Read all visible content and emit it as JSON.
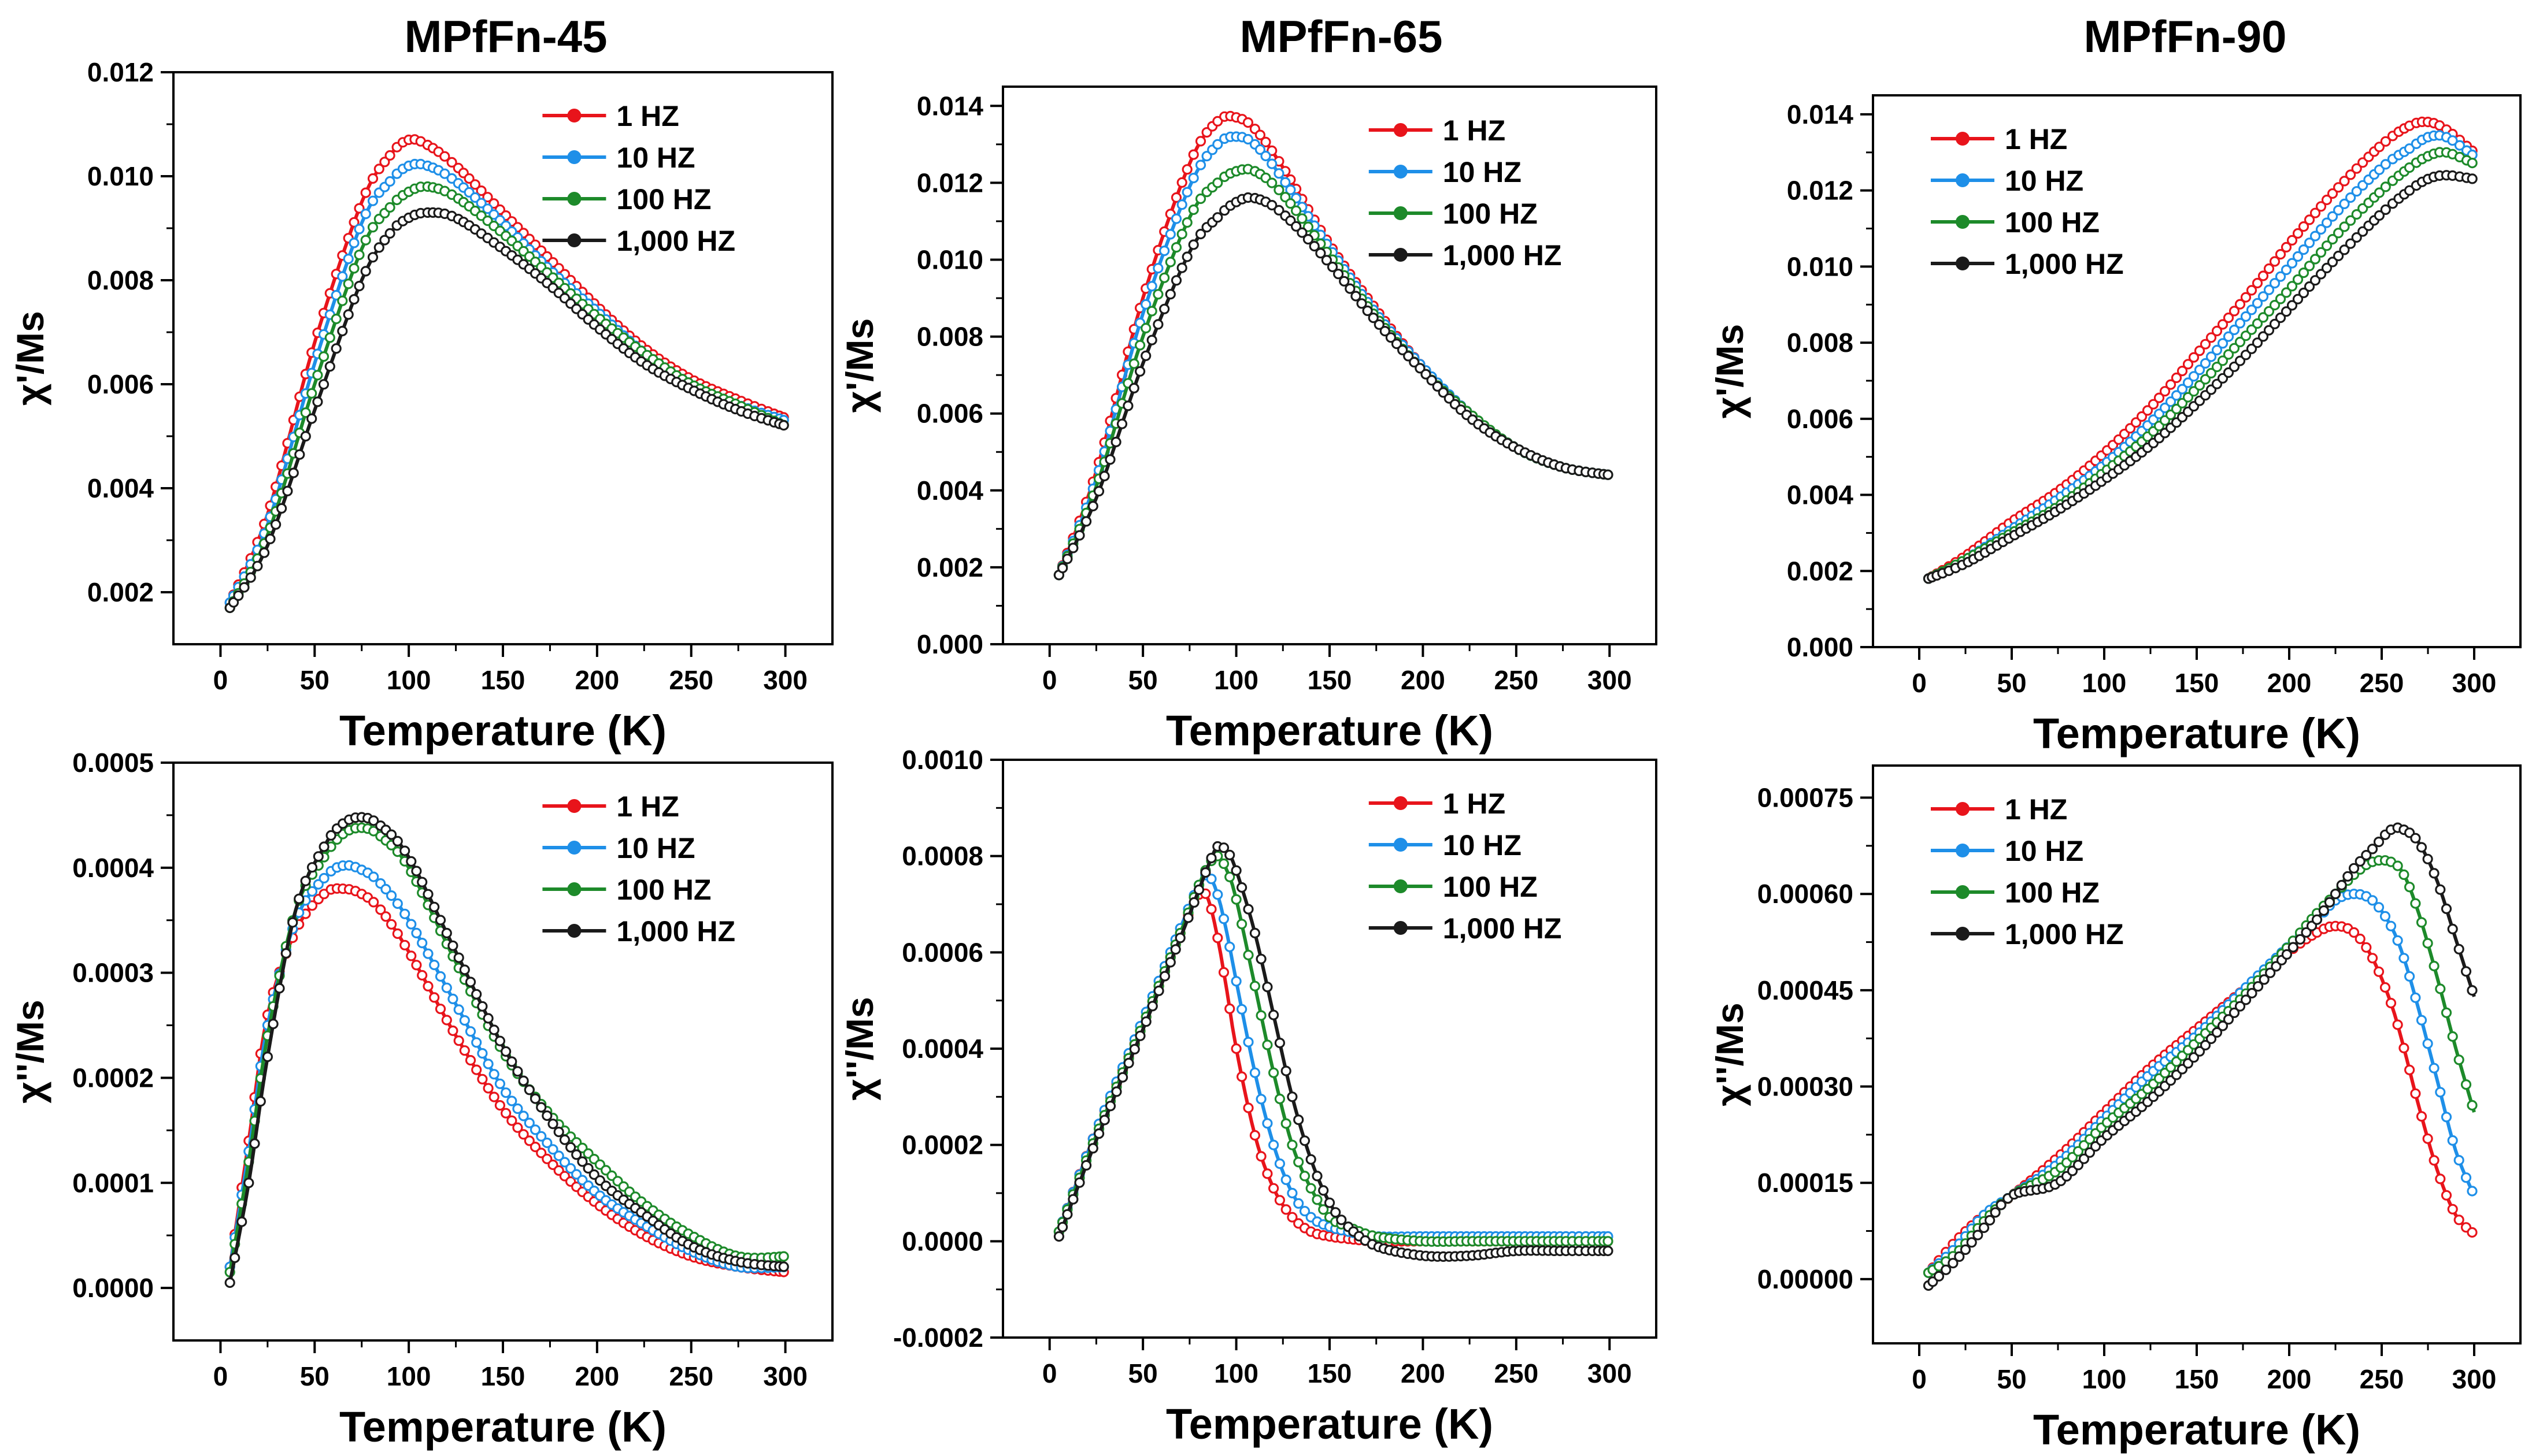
{
  "column_titles": [
    "MPfFn-45",
    "MPfFn-65",
    "MPfFn-90"
  ],
  "chart_data": [
    {
      "id": "p45_real",
      "type": "scatter",
      "title": "MPfFn-45",
      "xlabel": "Temperature (K)",
      "ylabel": "χ'/Ms",
      "xlim": [
        -25,
        325
      ],
      "ylim": [
        0.001,
        0.012
      ],
      "xticks": [
        0,
        50,
        100,
        150,
        200,
        250,
        300
      ],
      "xtick_labels": [
        "0",
        "50",
        "100",
        "150",
        "200",
        "250",
        "300"
      ],
      "yticks": [
        0.002,
        0.004,
        0.006,
        0.008,
        0.01,
        0.012
      ],
      "ytick_labels": [
        "0.002",
        "0.004",
        "0.006",
        "0.008",
        "0.010",
        "0.012"
      ],
      "legend_position": "top-right",
      "x": [
        5,
        25,
        50,
        75,
        90,
        100,
        110,
        125,
        150,
        175,
        200,
        225,
        250,
        275,
        300
      ],
      "series": [
        {
          "name": "1 HZ",
          "color": "#e8141b",
          "values": [
            0.0018,
            0.0035,
            0.0068,
            0.0095,
            0.0104,
            0.0107,
            0.0106,
            0.0102,
            0.0093,
            0.0084,
            0.0075,
            0.0067,
            0.0061,
            0.0057,
            0.00535
          ]
        },
        {
          "name": "10 HZ",
          "color": "#1e8fe8",
          "values": [
            0.0018,
            0.0033,
            0.0064,
            0.0091,
            0.0099,
            0.0102,
            0.0102,
            0.0099,
            0.0091,
            0.0082,
            0.0074,
            0.0066,
            0.006,
            0.0056,
            0.0053
          ]
        },
        {
          "name": "100 HZ",
          "color": "#1d8a2a",
          "values": [
            0.0017,
            0.0031,
            0.006,
            0.0086,
            0.0094,
            0.0097,
            0.0098,
            0.0096,
            0.0089,
            0.0081,
            0.0073,
            0.0066,
            0.006,
            0.0056,
            0.0052
          ]
        },
        {
          "name": "1,000 HZ",
          "color": "#1a1a1a",
          "values": [
            0.0017,
            0.0029,
            0.0055,
            0.008,
            0.0089,
            0.0092,
            0.0093,
            0.0092,
            0.0086,
            0.0079,
            0.0071,
            0.0064,
            0.0059,
            0.0055,
            0.0052
          ]
        }
      ]
    },
    {
      "id": "p65_real",
      "type": "scatter",
      "title": "MPfFn-65",
      "xlabel": "Temperature (K)",
      "ylabel": "χ'/Ms",
      "xlim": [
        -25,
        325
      ],
      "ylim": [
        0.0,
        0.0145
      ],
      "xticks": [
        0,
        50,
        100,
        150,
        200,
        250,
        300
      ],
      "xtick_labels": [
        "0",
        "50",
        "100",
        "150",
        "200",
        "250",
        "300"
      ],
      "yticks": [
        0.0,
        0.002,
        0.004,
        0.006,
        0.008,
        0.01,
        0.012,
        0.014
      ],
      "ytick_labels": [
        "0.000",
        "0.002",
        "0.004",
        "0.006",
        "0.008",
        "0.010",
        "0.012",
        "0.014"
      ],
      "legend_position": "top-right",
      "x": [
        5,
        25,
        50,
        75,
        90,
        100,
        110,
        125,
        150,
        175,
        200,
        225,
        250,
        275,
        300
      ],
      "series": [
        {
          "name": "1 HZ",
          "color": "#e8141b",
          "values": [
            0.0018,
            0.0045,
            0.009,
            0.0125,
            0.0136,
            0.0137,
            0.0134,
            0.0124,
            0.0104,
            0.0087,
            0.0072,
            0.006,
            0.0051,
            0.0046,
            0.0044
          ]
        },
        {
          "name": "10 HZ",
          "color": "#1e8fe8",
          "values": [
            0.0018,
            0.0043,
            0.0086,
            0.0119,
            0.013,
            0.0132,
            0.013,
            0.0121,
            0.0103,
            0.0086,
            0.0072,
            0.006,
            0.0051,
            0.0046,
            0.0044
          ]
        },
        {
          "name": "100 HZ",
          "color": "#1d8a2a",
          "values": [
            0.0018,
            0.0041,
            0.008,
            0.0111,
            0.012,
            0.0123,
            0.0123,
            0.0117,
            0.0101,
            0.0085,
            0.0071,
            0.006,
            0.0051,
            0.0046,
            0.0044
          ]
        },
        {
          "name": "1,000 HZ",
          "color": "#1a1a1a",
          "values": [
            0.0018,
            0.0038,
            0.0073,
            0.0102,
            0.0111,
            0.0115,
            0.0116,
            0.0112,
            0.0099,
            0.0084,
            0.0071,
            0.0059,
            0.0051,
            0.0046,
            0.0044
          ]
        }
      ]
    },
    {
      "id": "p90_real",
      "type": "scatter",
      "title": "MPfFn-90",
      "xlabel": "Temperature (K)",
      "ylabel": "χ'/Ms",
      "xlim": [
        -25,
        325
      ],
      "ylim": [
        0.0,
        0.0145
      ],
      "xticks": [
        0,
        50,
        100,
        150,
        200,
        250,
        300
      ],
      "xtick_labels": [
        "0",
        "50",
        "100",
        "150",
        "200",
        "250",
        "300"
      ],
      "yticks": [
        0.0,
        0.002,
        0.004,
        0.006,
        0.008,
        0.01,
        0.012,
        0.014
      ],
      "ytick_labels": [
        "0.000",
        "0.002",
        "0.004",
        "0.006",
        "0.008",
        "0.010",
        "0.012",
        "0.014"
      ],
      "legend_position": "top-left",
      "x": [
        5,
        25,
        50,
        75,
        100,
        125,
        150,
        175,
        200,
        225,
        250,
        265,
        275,
        285,
        300
      ],
      "series": [
        {
          "name": "1 HZ",
          "color": "#e8141b",
          "values": [
            0.0018,
            0.0024,
            0.0033,
            0.0041,
            0.0051,
            0.0063,
            0.0077,
            0.0091,
            0.0106,
            0.012,
            0.0132,
            0.0137,
            0.0138,
            0.0136,
            0.013
          ]
        },
        {
          "name": "10 HZ",
          "color": "#1e8fe8",
          "values": [
            0.0018,
            0.0023,
            0.0031,
            0.0039,
            0.0048,
            0.0059,
            0.0072,
            0.0086,
            0.01,
            0.0114,
            0.0126,
            0.0131,
            0.0134,
            0.0134,
            0.0129
          ]
        },
        {
          "name": "100 HZ",
          "color": "#1d8a2a",
          "values": [
            0.0018,
            0.0023,
            0.003,
            0.0037,
            0.0046,
            0.0056,
            0.0068,
            0.0081,
            0.0094,
            0.0108,
            0.012,
            0.0126,
            0.0129,
            0.013,
            0.0127
          ]
        },
        {
          "name": "1,000 HZ",
          "color": "#1a1a1a",
          "values": [
            0.0018,
            0.0022,
            0.0029,
            0.0036,
            0.0044,
            0.0053,
            0.0064,
            0.0076,
            0.0089,
            0.0102,
            0.0114,
            0.012,
            0.0123,
            0.0124,
            0.0123
          ]
        }
      ]
    },
    {
      "id": "p45_imag",
      "type": "scatter",
      "xlabel": "Temperature (K)",
      "ylabel": "χ''/Ms",
      "xlim": [
        -25,
        325
      ],
      "ylim": [
        -5e-05,
        0.0005
      ],
      "xticks": [
        0,
        50,
        100,
        150,
        200,
        250,
        300
      ],
      "xtick_labels": [
        "0",
        "50",
        "100",
        "150",
        "200",
        "250",
        "300"
      ],
      "yticks": [
        0.0,
        0.0001,
        0.0002,
        0.0003,
        0.0004,
        0.0005
      ],
      "ytick_labels": [
        "0.0000",
        "0.0001",
        "0.0002",
        "0.0003",
        "0.0004",
        "0.0005"
      ],
      "legend_position": "top-right",
      "x": [
        5,
        15,
        25,
        40,
        55,
        65,
        75,
        85,
        100,
        125,
        150,
        175,
        200,
        225,
        250,
        275,
        300
      ],
      "series": [
        {
          "name": "1 HZ",
          "color": "#e8141b",
          "values": [
            2e-05,
            0.00014,
            0.00026,
            0.00034,
            0.000375,
            0.00038,
            0.000375,
            0.00036,
            0.00032,
            0.00024,
            0.00017,
            0.00012,
            8e-05,
            5e-05,
            3e-05,
            2e-05,
            1.5e-05
          ]
        },
        {
          "name": "10 HZ",
          "color": "#1e8fe8",
          "values": [
            2e-05,
            0.00013,
            0.00025,
            0.00035,
            0.00039,
            0.000402,
            0.000398,
            0.000385,
            0.00035,
            0.00027,
            0.00019,
            0.000135,
            9e-05,
            6e-05,
            3.5e-05,
            2e-05,
            2e-05
          ]
        },
        {
          "name": "100 HZ",
          "color": "#1d8a2a",
          "values": [
            1.5e-05,
            0.00012,
            0.00024,
            0.00036,
            0.00041,
            0.000432,
            0.000438,
            0.00043,
            0.0004,
            0.00031,
            0.000225,
            0.000165,
            0.00012,
            8e-05,
            5e-05,
            3e-05,
            3e-05
          ]
        },
        {
          "name": "1,000 HZ",
          "color": "#1a1a1a",
          "values": [
            5e-06,
            0.0001,
            0.00022,
            0.00036,
            0.00042,
            0.000442,
            0.000448,
            0.00044,
            0.00041,
            0.00032,
            0.00023,
            0.00016,
            0.000105,
            7e-05,
            4e-05,
            2.5e-05,
            2e-05
          ]
        }
      ]
    },
    {
      "id": "p65_imag",
      "type": "scatter",
      "xlabel": "Temperature (K)",
      "ylabel": "χ''/Ms",
      "xlim": [
        -25,
        325
      ],
      "ylim": [
        -0.0002,
        0.001
      ],
      "xticks": [
        0,
        50,
        100,
        150,
        200,
        250,
        300
      ],
      "xtick_labels": [
        "0",
        "50",
        "100",
        "150",
        "200",
        "250",
        "300"
      ],
      "yticks": [
        -0.0002,
        0.0,
        0.0002,
        0.0004,
        0.0006,
        0.0008,
        0.001
      ],
      "ytick_labels": [
        "-0.0002",
        "0.0000",
        "0.0002",
        "0.0004",
        "0.0006",
        "0.0008",
        "0.0010"
      ],
      "legend_position": "top-right",
      "x": [
        5,
        25,
        50,
        70,
        80,
        85,
        90,
        95,
        100,
        110,
        120,
        130,
        140,
        150,
        160,
        175,
        200,
        225,
        250,
        275,
        300
      ],
      "series": [
        {
          "name": "1 HZ",
          "color": "#e8141b",
          "values": [
            2e-05,
            0.00023,
            0.00045,
            0.00064,
            0.00072,
            0.00071,
            0.00063,
            0.00052,
            0.0004,
            0.00022,
            0.00011,
            5e-05,
            2e-05,
            1e-05,
            5e-06,
            0.0,
            0.0,
            0.0,
            0.0,
            0.0,
            0.0
          ]
        },
        {
          "name": "10 HZ",
          "color": "#1e8fe8",
          "values": [
            2e-05,
            0.00023,
            0.00046,
            0.00065,
            0.00074,
            0.00076,
            0.00072,
            0.00064,
            0.00054,
            0.00035,
            0.0002,
            0.0001,
            5e-05,
            3e-05,
            2e-05,
            1e-05,
            1e-05,
            1e-05,
            1e-05,
            1e-05,
            1e-05
          ]
        },
        {
          "name": "100 HZ",
          "color": "#1d8a2a",
          "values": [
            2e-05,
            0.00022,
            0.00045,
            0.00064,
            0.00074,
            0.00078,
            0.0008,
            0.00077,
            0.00071,
            0.00053,
            0.00035,
            0.0002,
            0.00011,
            5e-05,
            3e-05,
            1e-05,
            0.0,
            0.0,
            0.0,
            0.0,
            0.0
          ]
        },
        {
          "name": "1,000 HZ",
          "color": "#1a1a1a",
          "values": [
            1e-05,
            0.00021,
            0.00044,
            0.00063,
            0.00073,
            0.00078,
            0.00082,
            0.00081,
            0.00077,
            0.00064,
            0.00047,
            0.0003,
            0.00017,
            8e-05,
            3e-05,
            -1e-05,
            -3e-05,
            -3e-05,
            -2e-05,
            -2e-05,
            -2e-05
          ]
        }
      ]
    },
    {
      "id": "p90_imag",
      "type": "scatter",
      "xlabel": "Temperature (K)",
      "ylabel": "χ''/Ms",
      "xlim": [
        -25,
        325
      ],
      "ylim": [
        -0.0001,
        0.0008
      ],
      "xticks": [
        0,
        50,
        100,
        150,
        200,
        250,
        300
      ],
      "xtick_labels": [
        "0",
        "50",
        "100",
        "150",
        "200",
        "250",
        "300"
      ],
      "yticks": [
        0.0,
        0.00015,
        0.0003,
        0.00045,
        0.0006,
        0.00075
      ],
      "ytick_labels": [
        "0.00000",
        "0.00015",
        "0.00030",
        "0.00045",
        "0.00060",
        "0.00075"
      ],
      "legend_position": "top-left",
      "x": [
        5,
        20,
        35,
        50,
        75,
        100,
        125,
        150,
        175,
        200,
        215,
        225,
        235,
        245,
        255,
        262,
        270,
        280,
        290,
        300
      ],
      "series": [
        {
          "name": "1 HZ",
          "color": "#e8141b",
          "values": [
            1e-05,
            6e-05,
            0.0001,
            0.00013,
            0.00019,
            0.00026,
            0.00033,
            0.00039,
            0.00045,
            0.00051,
            0.00054,
            0.00055,
            0.00054,
            0.0005,
            0.00043,
            0.00036,
            0.00027,
            0.00017,
            0.0001,
            7e-05
          ]
        },
        {
          "name": "10 HZ",
          "color": "#1e8fe8",
          "values": [
            1e-05,
            5e-05,
            0.0001,
            0.00013,
            0.00018,
            0.00025,
            0.00032,
            0.00038,
            0.00045,
            0.00052,
            0.00056,
            0.00059,
            0.0006,
            0.00059,
            0.00055,
            0.0005,
            0.00042,
            0.00031,
            0.0002,
            0.00013
          ]
        },
        {
          "name": "100 HZ",
          "color": "#1d8a2a",
          "values": [
            1e-05,
            4e-05,
            9e-05,
            0.00013,
            0.00017,
            0.00024,
            0.0003,
            0.00037,
            0.00044,
            0.00052,
            0.00057,
            0.0006,
            0.00063,
            0.00065,
            0.00065,
            0.00063,
            0.00057,
            0.00047,
            0.00036,
            0.00026
          ]
        },
        {
          "name": "1,000 HZ",
          "color": "#1a1a1a",
          "values": [
            -1e-05,
            3e-05,
            8e-05,
            0.00013,
            0.00015,
            0.00022,
            0.00028,
            0.00035,
            0.00043,
            0.00051,
            0.00056,
            0.0006,
            0.00064,
            0.00067,
            0.0007,
            0.0007,
            0.00068,
            0.00062,
            0.00053,
            0.00044
          ]
        }
      ]
    }
  ]
}
